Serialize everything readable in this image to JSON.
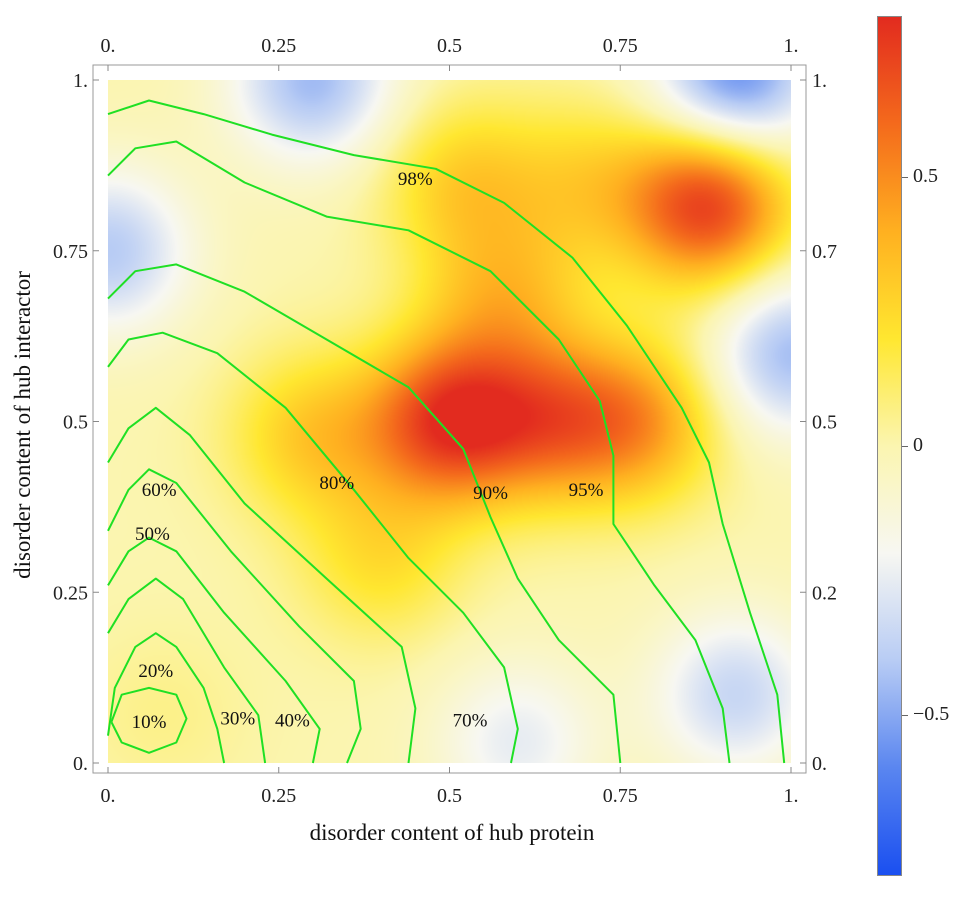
{
  "chart_data": {
    "type": "heatmap",
    "title": "",
    "xlabel": "disorder content of hub protein",
    "ylabel": "disorder content of hub interactor",
    "xlim": [
      0,
      1
    ],
    "ylim": [
      0,
      1
    ],
    "grid": false,
    "x_ticks": [
      "0.",
      "0.25",
      "0.5",
      "0.75",
      "1."
    ],
    "y_ticks_left": [
      "0.",
      "0.25",
      "0.5",
      "0.75",
      "1."
    ],
    "y_ticks_right": [
      "0.",
      "0.2",
      "0.5",
      "0.7",
      "1."
    ],
    "colorbar": {
      "range": [
        -0.8,
        0.8
      ],
      "ticks": [
        "0.5",
        "0",
        "−0.5"
      ],
      "tick_values": [
        0.5,
        0,
        -0.5
      ],
      "colors": [
        "#1a4ff0",
        "#5a86f0",
        "#b8ccf4",
        "#f7f7f2",
        "#fbf5b0",
        "#ffe730",
        "#ffb020",
        "#f46a1c",
        "#e22b1f"
      ]
    },
    "hotspots": [
      {
        "x": 0.5,
        "y": 0.5,
        "value": 0.72
      },
      {
        "x": 0.88,
        "y": 0.82,
        "value": 0.75
      },
      {
        "x": 0.65,
        "y": 0.5,
        "value": 0.45
      },
      {
        "x": 0.78,
        "y": 0.5,
        "value": 0.42
      },
      {
        "x": 0.3,
        "y": 0.48,
        "value": 0.3
      },
      {
        "x": 0.58,
        "y": 0.68,
        "value": 0.3
      },
      {
        "x": 0.52,
        "y": 0.85,
        "value": 0.28
      },
      {
        "x": 0.7,
        "y": 0.85,
        "value": 0.22
      },
      {
        "x": 0.4,
        "y": 0.3,
        "value": 0.22
      },
      {
        "x": 0.08,
        "y": 0.07,
        "value": 0.06
      },
      {
        "x": 0.92,
        "y": 0.1,
        "value": -0.35
      },
      {
        "x": 0.0,
        "y": 0.75,
        "value": -0.4
      },
      {
        "x": 0.92,
        "y": 1.0,
        "value": -0.6
      },
      {
        "x": 0.3,
        "y": 1.0,
        "value": -0.45
      },
      {
        "x": 1.0,
        "y": 0.6,
        "value": -0.45
      },
      {
        "x": 0.6,
        "y": 0.03,
        "value": -0.25
      }
    ],
    "contours": [
      {
        "label": "10%",
        "label_pos": [
          0.06,
          0.06
        ]
      },
      {
        "label": "20%",
        "label_pos": [
          0.07,
          0.135
        ]
      },
      {
        "label": "30%",
        "label_pos": [
          0.19,
          0.065
        ]
      },
      {
        "label": "40%",
        "label_pos": [
          0.27,
          0.062
        ]
      },
      {
        "label": "50%",
        "label_pos": [
          0.065,
          0.335
        ]
      },
      {
        "label": "60%",
        "label_pos": [
          0.075,
          0.4
        ]
      },
      {
        "label": "70%",
        "label_pos": [
          0.53,
          0.062
        ]
      },
      {
        "label": "80%",
        "label_pos": [
          0.335,
          0.41
        ]
      },
      {
        "label": "90%",
        "label_pos": [
          0.56,
          0.395
        ]
      },
      {
        "label": "95%",
        "label_pos": [
          0.7,
          0.4
        ]
      },
      {
        "label": "98%",
        "label_pos": [
          0.45,
          0.855
        ]
      }
    ]
  }
}
